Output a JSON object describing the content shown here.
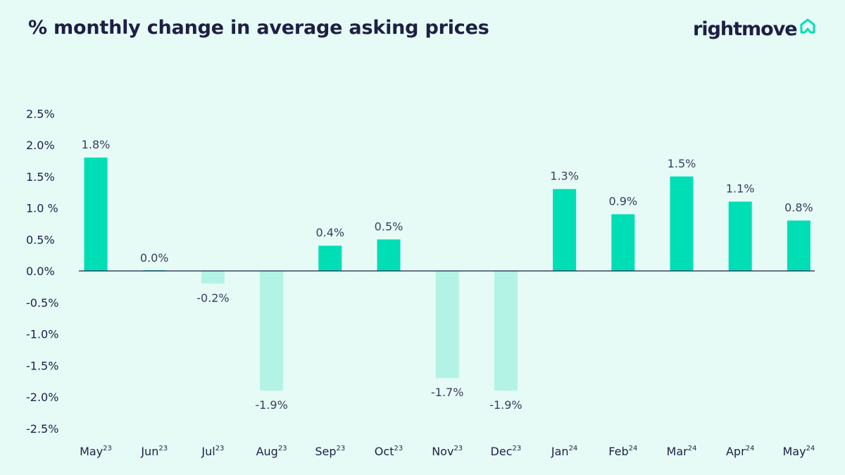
{
  "header": {
    "title": "% monthly change in average asking prices",
    "brand_name": "rightmove",
    "brand_icon": "house-outline-icon"
  },
  "colors": {
    "background": "#e6fbf6",
    "positive_bar": "#00deb6",
    "negative_bar": "#b3f3e6",
    "text": "#1e1f45",
    "axis_line": "#1e1f45",
    "brand_icon": "#00deb6"
  },
  "chart_data": {
    "type": "bar",
    "title": "% monthly change in average asking prices",
    "xlabel": "",
    "ylabel": "",
    "ylim": [
      -2.5,
      2.5
    ],
    "yticks": [
      "2.5%",
      "2.0%",
      "1.5%",
      "1.0 %",
      "0.5%",
      "0.0%",
      "-0.5%",
      "-1.0%",
      "-1.5%",
      "-2.0%",
      "-2.5%"
    ],
    "ytick_values": [
      2.5,
      2.0,
      1.5,
      1.0,
      0.5,
      0.0,
      -0.5,
      -1.0,
      -1.5,
      -2.0,
      -2.5
    ],
    "grid": false,
    "categories": [
      {
        "month": "May",
        "year": "23"
      },
      {
        "month": "Jun",
        "year": "23"
      },
      {
        "month": "Jul",
        "year": "23"
      },
      {
        "month": "Aug",
        "year": "23"
      },
      {
        "month": "Sep",
        "year": "23"
      },
      {
        "month": "Oct",
        "year": "23"
      },
      {
        "month": "Nov",
        "year": "23"
      },
      {
        "month": "Dec",
        "year": "23"
      },
      {
        "month": "Jan",
        "year": "24"
      },
      {
        "month": "Feb",
        "year": "24"
      },
      {
        "month": "Mar",
        "year": "24"
      },
      {
        "month": "Apr",
        "year": "24"
      },
      {
        "month": "May",
        "year": "24"
      }
    ],
    "values": [
      1.8,
      0.0,
      -0.2,
      -1.9,
      0.4,
      0.5,
      -1.7,
      -1.9,
      1.3,
      0.9,
      1.5,
      1.1,
      0.8
    ],
    "data_labels": [
      "1.8%",
      "0.0%",
      "-0.2%",
      "-1.9%",
      "0.4%",
      "0.5%",
      "-1.7%",
      "-1.9%",
      "1.3%",
      "0.9%",
      "1.5%",
      "1.1%",
      "0.8%"
    ]
  }
}
